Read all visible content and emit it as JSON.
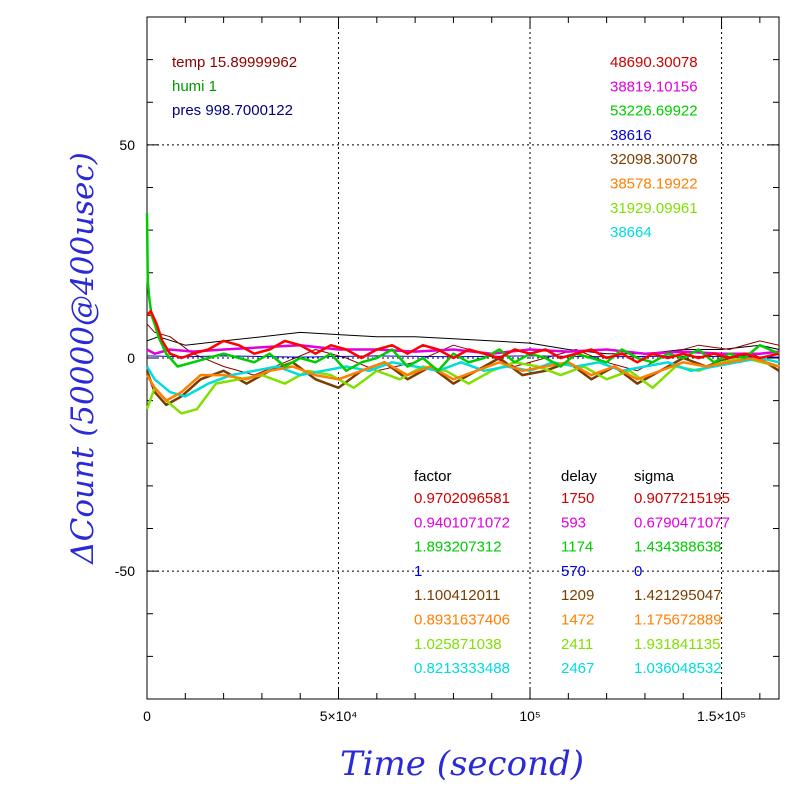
{
  "chart_data": {
    "type": "line",
    "xlabel": "Time (second)",
    "ylabel": "ΔCount (50000@400usec)",
    "xlim": [
      0,
      165000
    ],
    "ylim": [
      -80,
      80
    ],
    "x_ticks": [
      {
        "value": 0,
        "label": "0"
      },
      {
        "value": 50000,
        "label": "5×10⁴"
      },
      {
        "value": 100000,
        "label": "10⁵"
      },
      {
        "value": 150000,
        "label": "1.5×10⁵"
      }
    ],
    "y_ticks": [
      {
        "value": 50,
        "label": "50"
      },
      {
        "value": 0,
        "label": "0"
      },
      {
        "value": -50,
        "label": "-50"
      }
    ],
    "grid": true,
    "env_legend": [
      {
        "text": "temp 15.89999962",
        "color": "#8b0000"
      },
      {
        "text": "humi 1",
        "color": "#009900"
      },
      {
        "text": "pres 998.7000122",
        "color": "#000080"
      }
    ],
    "count_legend": [
      {
        "text": "48690.30078",
        "color": "#cc0000"
      },
      {
        "text": "38819.10156",
        "color": "#e000e0"
      },
      {
        "text": "53226.69922",
        "color": "#00cc00"
      },
      {
        "text": "38616",
        "color": "#0000dd"
      },
      {
        "text": "32098.30078",
        "color": "#7a3d00"
      },
      {
        "text": "38578.19922",
        "color": "#ff7f00"
      },
      {
        "text": "31929.09961",
        "color": "#80e000"
      },
      {
        "text": "38664",
        "color": "#00dddd"
      }
    ],
    "table_headers": [
      "factor",
      "delay",
      "sigma"
    ],
    "table_rows": [
      {
        "factor": "0.9702096581",
        "delay": "1750",
        "sigma": "0.9077215195",
        "color": "#cc0000"
      },
      {
        "factor": "0.9401071072",
        "delay": "593",
        "sigma": "0.6790471077",
        "color": "#e000e0"
      },
      {
        "factor": "1.893207312",
        "delay": "1174",
        "sigma": "1.434388638",
        "color": "#00cc00"
      },
      {
        "factor": "1",
        "delay": "570",
        "sigma": "0",
        "color": "#0000dd"
      },
      {
        "factor": "1.100412011",
        "delay": "1209",
        "sigma": "1.421295047",
        "color": "#7a3d00"
      },
      {
        "factor": "0.8931637406",
        "delay": "1472",
        "sigma": "1.175672889",
        "color": "#ff7f00"
      },
      {
        "factor": "1.025871038",
        "delay": "2411",
        "sigma": "1.931841135",
        "color": "#80e000"
      },
      {
        "factor": "0.8213333488",
        "delay": "2467",
        "sigma": "1.036048532",
        "color": "#00dddd"
      }
    ],
    "series": [
      {
        "color": "#000000",
        "x": [
          0,
          3000,
          10000,
          20000,
          30000,
          40000,
          50000,
          60000,
          70000,
          80000,
          90000,
          100000,
          110000,
          120000,
          130000,
          140000,
          150000,
          160000,
          165000
        ],
        "y": [
          4,
          5,
          3,
          4,
          5,
          6,
          5.5,
          5,
          5,
          4.5,
          4,
          3.5,
          2,
          1,
          1,
          2,
          2,
          3,
          2
        ]
      },
      {
        "color": "#8b0000",
        "x": [
          0,
          2000,
          6000,
          12000,
          20000,
          28000,
          36000,
          44000,
          52000,
          60000,
          70000,
          80000,
          88000,
          96000,
          104000,
          112000,
          120000,
          128000,
          136000,
          144000,
          152000,
          160000,
          165000
        ],
        "y": [
          8,
          6,
          5,
          1,
          -2,
          -4,
          -1,
          2,
          0,
          -3,
          -1,
          3,
          1,
          -2,
          0,
          2,
          -1,
          -3,
          1,
          3,
          2,
          4,
          3
        ]
      },
      {
        "color": "#7a3d00",
        "x": [
          0,
          2000,
          5000,
          9000,
          14000,
          20000,
          26000,
          32000,
          38000,
          44000,
          50000,
          56000,
          62000,
          68000,
          74000,
          80000,
          86000,
          92000,
          98000,
          104000,
          110000,
          116000,
          122000,
          128000,
          134000,
          140000,
          146000,
          152000,
          158000,
          165000
        ],
        "y": [
          -3,
          -8,
          -11,
          -9,
          -5,
          -3,
          -6,
          -3,
          -1,
          -5,
          -7,
          -3,
          -1,
          -5,
          -2,
          -6,
          -3,
          0,
          -4,
          -3,
          -1,
          -5,
          -2,
          -6,
          -3,
          0,
          -2,
          0,
          1,
          -3
        ]
      },
      {
        "color": "#80e000",
        "x": [
          0,
          2000,
          5000,
          9000,
          13000,
          18000,
          24000,
          30000,
          36000,
          42000,
          48000,
          54000,
          60000,
          66000,
          72000,
          78000,
          84000,
          90000,
          96000,
          102000,
          108000,
          114000,
          120000,
          126000,
          132000,
          138000,
          144000,
          150000,
          156000,
          165000
        ],
        "y": [
          -12,
          -7,
          -10,
          -13,
          -12,
          -6,
          -5,
          -4,
          -6,
          -3,
          -4,
          -7,
          -3,
          -5,
          -2,
          -3,
          -6,
          -3,
          -1,
          -2,
          -4,
          -2,
          -5,
          -3,
          -7,
          -2,
          -3,
          -1,
          0,
          -2
        ]
      },
      {
        "color": "#00dddd",
        "x": [
          0,
          2000,
          6000,
          10000,
          16000,
          22000,
          28000,
          34000,
          40000,
          46000,
          52000,
          58000,
          64000,
          70000,
          76000,
          82000,
          88000,
          94000,
          100000,
          106000,
          112000,
          118000,
          124000,
          130000,
          136000,
          142000,
          148000,
          154000,
          160000,
          165000
        ],
        "y": [
          -2,
          -5,
          -8,
          -9,
          -6,
          -4,
          -3,
          -2,
          -4,
          -3,
          -2,
          -3,
          -1,
          -2,
          -3,
          -1,
          -3,
          -2,
          -3,
          -1,
          -2,
          -1,
          -3,
          -2,
          -1,
          -3,
          -2,
          -1,
          0,
          -1
        ]
      },
      {
        "color": "#ff7f00",
        "x": [
          0,
          2000,
          5000,
          9000,
          14000,
          20000,
          26000,
          32000,
          38000,
          44000,
          50000,
          56000,
          62000,
          68000,
          74000,
          80000,
          86000,
          92000,
          98000,
          104000,
          110000,
          116000,
          122000,
          128000,
          134000,
          140000,
          146000,
          152000,
          158000,
          165000
        ],
        "y": [
          -4,
          -7,
          -10,
          -8,
          -4,
          -4,
          -5,
          -3,
          -2,
          -4,
          -5,
          -3,
          -1,
          -4,
          -2,
          -5,
          -3,
          -1,
          -3,
          -2,
          -1,
          -4,
          -2,
          -5,
          -3,
          -1,
          -2,
          -1,
          0,
          -2
        ]
      },
      {
        "color": "#e000e0",
        "x": [
          0,
          2000,
          6000,
          12000,
          20000,
          30000,
          40000,
          50000,
          60000,
          70000,
          80000,
          90000,
          100000,
          110000,
          120000,
          130000,
          140000,
          150000,
          160000,
          165000
        ],
        "y": [
          2,
          1,
          2,
          1.5,
          2,
          2.5,
          3,
          2,
          2,
          1.5,
          2,
          1,
          2,
          1.5,
          2,
          1,
          1.5,
          1,
          1,
          1.5
        ]
      },
      {
        "color": "#0000dd",
        "x": [
          0,
          10000,
          20000,
          40000,
          60000,
          80000,
          100000,
          120000,
          140000,
          165000
        ],
        "y": [
          0.5,
          0.3,
          0.5,
          0.2,
          0.5,
          0.3,
          0.5,
          0.3,
          0.4,
          0.2
        ]
      },
      {
        "color": "#00cc00",
        "x": [
          0,
          200,
          600,
          1200,
          2000,
          3000,
          5000,
          8000,
          12000,
          16000,
          20000,
          24000,
          28000,
          32000,
          36000,
          40000,
          44000,
          48000,
          52000,
          56000,
          60000,
          64000,
          68000,
          72000,
          76000,
          80000,
          84000,
          88000,
          92000,
          96000,
          100000,
          104000,
          108000,
          112000,
          116000,
          120000,
          124000,
          128000,
          132000,
          136000,
          140000,
          144000,
          148000,
          152000,
          156000,
          160000,
          165000
        ],
        "y": [
          34,
          18,
          14,
          10,
          8,
          5,
          1,
          -2,
          -1,
          0,
          1,
          0,
          -1,
          1,
          -2,
          0,
          -1,
          1,
          -3,
          -1,
          0,
          2,
          -2,
          0,
          -3,
          1,
          -1,
          0,
          2,
          -1,
          1,
          0,
          -2,
          1,
          0,
          -1,
          2,
          0,
          -1,
          1,
          0,
          2,
          -1,
          1,
          0,
          3,
          1
        ]
      },
      {
        "color": "#ff0000",
        "x": [
          0,
          1000,
          2500,
          4000,
          6000,
          9000,
          12000,
          16000,
          20000,
          24000,
          28000,
          32000,
          36000,
          40000,
          44000,
          48000,
          52000,
          56000,
          60000,
          64000,
          68000,
          72000,
          76000,
          80000,
          84000,
          88000,
          92000,
          96000,
          100000,
          104000,
          108000,
          112000,
          116000,
          120000,
          124000,
          128000,
          132000,
          136000,
          140000,
          144000,
          148000,
          152000,
          156000,
          160000,
          165000
        ],
        "y": [
          10,
          11,
          8,
          4,
          1,
          0,
          1,
          2,
          4,
          3,
          1,
          2,
          4,
          3,
          1,
          3,
          2,
          0,
          2,
          3,
          1,
          3,
          2,
          0,
          2,
          1,
          0,
          2,
          1,
          2,
          0,
          1,
          2,
          0,
          1,
          -1,
          1,
          0,
          1,
          0,
          1,
          0,
          1,
          0,
          1
        ]
      }
    ]
  }
}
